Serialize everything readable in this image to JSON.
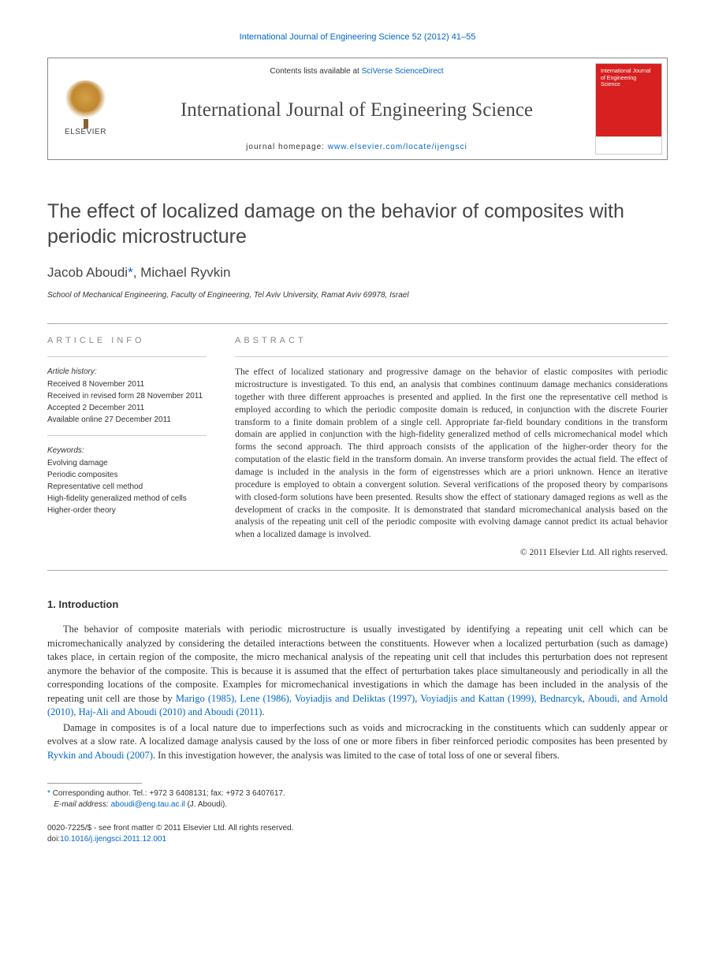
{
  "header": {
    "citation": "International Journal of Engineering Science 52 (2012) 41–55",
    "contents_prefix": "Contents lists available at ",
    "contents_link": "SciVerse ScienceDirect",
    "journal_title": "International Journal of Engineering Science",
    "homepage_prefix": "journal homepage: ",
    "homepage_url": "www.elsevier.com/locate/ijengsci",
    "publisher": "ELSEVIER",
    "cover_text": "International Journal of Engineering Science"
  },
  "article": {
    "title": "The effect of localized damage on the behavior of composites with periodic microstructure",
    "authors_html": "Jacob Aboudi",
    "corr_mark": "*",
    "authors_rest": ", Michael Ryvkin",
    "affiliation": "School of Mechanical Engineering, Faculty of Engineering, Tel Aviv University, Ramat Aviv 69978, Israel"
  },
  "info": {
    "heading": "ARTICLE INFO",
    "history_label": "Article history:",
    "history": [
      "Received 8 November 2011",
      "Received in revised form 28 November 2011",
      "Accepted 2 December 2011",
      "Available online 27 December 2011"
    ],
    "keywords_label": "Keywords:",
    "keywords": [
      "Evolving damage",
      "Periodic composites",
      "Representative cell method",
      "High-fidelity generalized method of cells",
      "Higher-order theory"
    ]
  },
  "abstract": {
    "heading": "ABSTRACT",
    "text": "The effect of localized stationary and progressive damage on the behavior of elastic composites with periodic microstructure is investigated. To this end, an analysis that combines continuum damage mechanics considerations together with three different approaches is presented and applied. In the first one the representative cell method is employed according to which the periodic composite domain is reduced, in conjunction with the discrete Fourier transform to a finite domain problem of a single cell. Appropriate far-field boundary conditions in the transform domain are applied in conjunction with the high-fidelity generalized method of cells micromechanical model which forms the second approach. The third approach consists of the application of the higher-order theory for the computation of the elastic field in the transform domain. An inverse transform provides the actual field. The effect of damage is included in the analysis in the form of eigenstresses which are a priori unknown. Hence an iterative procedure is employed to obtain a convergent solution. Several verifications of the proposed theory by comparisons with closed-form solutions have been presented. Results show the effect of stationary damaged regions as well as the development of cracks in the composite. It is demonstrated that standard micromechanical analysis based on the analysis of the repeating unit cell of the periodic composite with evolving damage cannot predict its actual behavior when a localized damage is involved.",
    "copyright": "© 2011 Elsevier Ltd. All rights reserved."
  },
  "body": {
    "section_heading": "1. Introduction",
    "p1_a": "The behavior of composite materials with periodic microstructure is usually investigated by identifying a repeating unit cell which can be micromechanically analyzed by considering the detailed interactions between the constituents. However when a localized perturbation (such as damage) takes place, in certain region of the composite, the micro mechanical analysis of the repeating unit cell that includes this perturbation does not represent anymore the behavior of the composite. This is because it is assumed that the effect of perturbation takes place simultaneously and periodically in all the corresponding locations of the composite. Examples for micromechanical investigations in which the damage has been included in the analysis of the repeating unit cell are those by ",
    "p1_link": "Marigo (1985), Lene (1986), Voyiadjis and Deliktas (1997), Voyiadjis and Kattan (1999), Bednarcyk, Aboudi, and Arnold (2010), Haj-Ali and Aboudi (2010) and Aboudi (2011)",
    "p1_b": ".",
    "p2_a": "Damage in composites is of a local nature due to imperfections such as voids and microcracking in the constituents which can suddenly appear or evolves at a slow rate. A localized damage analysis caused by the loss of one or more fibers in fiber reinforced periodic composites has been presented by ",
    "p2_link": "Ryvkin and Aboudi (2007)",
    "p2_b": ". In this investigation however, the analysis was limited to the case of total loss of one or several fibers."
  },
  "footnote": {
    "corr": "Corresponding author. Tel.: +972 3 6408131; fax: +972 3 6407617.",
    "email_label": "E-mail address:",
    "email": "aboudi@eng.tau.ac.il",
    "email_suffix": " (J. Aboudi)."
  },
  "footer": {
    "line1": "0020-7225/$ - see front matter © 2011 Elsevier Ltd. All rights reserved.",
    "doi_label": "doi:",
    "doi": "10.1016/j.ijengsci.2011.12.001"
  },
  "colors": {
    "link": "#0066cc",
    "rule": "#aaaaaa",
    "cover_red": "#d82020",
    "text": "#333333"
  }
}
